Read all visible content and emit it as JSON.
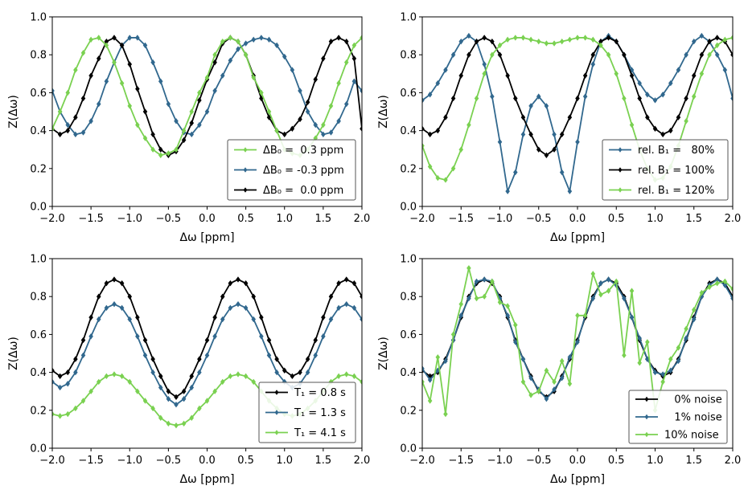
{
  "colors": {
    "black": "#000000",
    "teal": "#31688e",
    "green": "#7ad151"
  },
  "chart_data": [
    {
      "type": "line",
      "xlabel": "Δω [ppm]",
      "ylabel": "Z(Δω)",
      "xlim": [
        -2.0,
        2.0
      ],
      "ylim": [
        0.0,
        1.0
      ],
      "xticks": [
        "−2.0",
        "−1.5",
        "−1.0",
        "−0.5",
        "0.0",
        "0.5",
        "1.0",
        "1.5",
        "2.0"
      ],
      "yticks": [
        "0.0",
        "0.2",
        "0.4",
        "0.6",
        "0.8",
        "1.0"
      ],
      "legend_position": "bottom-right",
      "legend_series_order": [
        2,
        0,
        1
      ],
      "x": [
        -2.0,
        -1.9,
        -1.8,
        -1.7,
        -1.6,
        -1.5,
        -1.4,
        -1.3,
        -1.2,
        -1.1,
        -1.0,
        -0.9,
        -0.8,
        -0.7,
        -0.6,
        -0.5,
        -0.4,
        -0.3,
        -0.2,
        -0.1,
        0.0,
        0.1,
        0.2,
        0.3,
        0.4,
        0.5,
        0.6,
        0.7,
        0.8,
        0.9,
        1.0,
        1.1,
        1.2,
        1.3,
        1.4,
        1.5,
        1.6,
        1.7,
        1.8,
        1.9,
        2.0
      ],
      "series": [
        {
          "name": "ΔB₀ = -0.3 ppm",
          "color": "teal",
          "values": [
            0.61,
            0.5,
            0.43,
            0.38,
            0.39,
            0.45,
            0.54,
            0.66,
            0.76,
            0.85,
            0.89,
            0.89,
            0.85,
            0.76,
            0.66,
            0.54,
            0.45,
            0.39,
            0.38,
            0.43,
            0.5,
            0.61,
            0.69,
            0.77,
            0.83,
            0.86,
            0.88,
            0.89,
            0.88,
            0.85,
            0.79,
            0.72,
            0.61,
            0.5,
            0.43,
            0.38,
            0.39,
            0.45,
            0.54,
            0.66,
            0.61
          ]
        },
        {
          "name": "ΔB₀ =  0.0 ppm",
          "color": "black",
          "values": [
            0.41,
            0.38,
            0.4,
            0.47,
            0.57,
            0.69,
            0.78,
            0.87,
            0.89,
            0.85,
            0.75,
            0.62,
            0.5,
            0.38,
            0.3,
            0.27,
            0.29,
            0.35,
            0.44,
            0.56,
            0.67,
            0.76,
            0.86,
            0.89,
            0.87,
            0.8,
            0.69,
            0.57,
            0.47,
            0.4,
            0.38,
            0.41,
            0.46,
            0.55,
            0.67,
            0.78,
            0.87,
            0.89,
            0.87,
            0.78,
            0.41
          ]
        },
        {
          "name": "ΔB₀ =  0.3 ppm",
          "color": "green",
          "values": [
            0.41,
            0.5,
            0.6,
            0.72,
            0.81,
            0.88,
            0.89,
            0.85,
            0.76,
            0.65,
            0.53,
            0.43,
            0.36,
            0.3,
            0.27,
            0.28,
            0.3,
            0.4,
            0.5,
            0.6,
            0.68,
            0.8,
            0.87,
            0.89,
            0.87,
            0.8,
            0.68,
            0.6,
            0.5,
            0.4,
            0.3,
            0.28,
            0.27,
            0.3,
            0.36,
            0.43,
            0.53,
            0.65,
            0.76,
            0.85,
            0.89
          ]
        }
      ]
    },
    {
      "type": "line",
      "xlabel": "Δω [ppm]",
      "ylabel": "Z(Δω)",
      "xlim": [
        -2.0,
        2.0
      ],
      "ylim": [
        0.0,
        1.0
      ],
      "xticks": [
        "−2.0",
        "−1.5",
        "−1.0",
        "−0.5",
        "0.0",
        "0.5",
        "1.0",
        "1.5",
        "2.0"
      ],
      "yticks": [
        "0.0",
        "0.2",
        "0.4",
        "0.6",
        "0.8",
        "1.0"
      ],
      "legend_position": "bottom-right",
      "legend_series_order": [
        0,
        1,
        2
      ],
      "x": [
        -2.0,
        -1.9,
        -1.8,
        -1.7,
        -1.6,
        -1.5,
        -1.4,
        -1.3,
        -1.2,
        -1.1,
        -1.0,
        -0.9,
        -0.8,
        -0.7,
        -0.6,
        -0.5,
        -0.4,
        -0.3,
        -0.2,
        -0.1,
        0.0,
        0.1,
        0.2,
        0.3,
        0.4,
        0.5,
        0.6,
        0.7,
        0.8,
        0.9,
        1.0,
        1.1,
        1.2,
        1.3,
        1.4,
        1.5,
        1.6,
        1.7,
        1.8,
        1.9,
        2.0
      ],
      "series": [
        {
          "name": "rel. B₁ =   80%",
          "color": "teal",
          "values": [
            0.56,
            0.59,
            0.65,
            0.72,
            0.8,
            0.87,
            0.9,
            0.87,
            0.75,
            0.58,
            0.34,
            0.08,
            0.18,
            0.38,
            0.53,
            0.58,
            0.53,
            0.38,
            0.18,
            0.08,
            0.34,
            0.58,
            0.75,
            0.87,
            0.9,
            0.87,
            0.8,
            0.72,
            0.65,
            0.59,
            0.56,
            0.59,
            0.65,
            0.72,
            0.8,
            0.87,
            0.9,
            0.87,
            0.8,
            0.72,
            0.57
          ]
        },
        {
          "name": "rel. B₁ = 100%",
          "color": "black",
          "values": [
            0.41,
            0.38,
            0.4,
            0.47,
            0.57,
            0.69,
            0.8,
            0.87,
            0.89,
            0.87,
            0.8,
            0.69,
            0.57,
            0.47,
            0.38,
            0.3,
            0.27,
            0.3,
            0.38,
            0.47,
            0.57,
            0.69,
            0.8,
            0.87,
            0.89,
            0.87,
            0.8,
            0.69,
            0.57,
            0.47,
            0.41,
            0.38,
            0.4,
            0.47,
            0.57,
            0.69,
            0.8,
            0.87,
            0.89,
            0.87,
            0.8
          ]
        },
        {
          "name": "rel. B₁ = 120%",
          "color": "green",
          "values": [
            0.32,
            0.21,
            0.15,
            0.14,
            0.2,
            0.3,
            0.43,
            0.57,
            0.7,
            0.8,
            0.85,
            0.88,
            0.89,
            0.89,
            0.88,
            0.87,
            0.86,
            0.86,
            0.87,
            0.88,
            0.89,
            0.89,
            0.88,
            0.85,
            0.8,
            0.7,
            0.57,
            0.43,
            0.3,
            0.2,
            0.14,
            0.15,
            0.21,
            0.32,
            0.45,
            0.58,
            0.7,
            0.8,
            0.85,
            0.88,
            0.89
          ]
        }
      ]
    },
    {
      "type": "line",
      "xlabel": "Δω [ppm]",
      "ylabel": "Z(Δω)",
      "xlim": [
        -2.0,
        2.0
      ],
      "ylim": [
        0.0,
        1.0
      ],
      "xticks": [
        "−2.0",
        "−1.5",
        "−1.0",
        "−0.5",
        "0.0",
        "0.5",
        "1.0",
        "1.5",
        "2.0"
      ],
      "yticks": [
        "0.0",
        "0.2",
        "0.4",
        "0.6",
        "0.8",
        "1.0"
      ],
      "legend_position": "bottom-right",
      "legend_series_order": [
        0,
        1,
        2
      ],
      "x": [
        -2.0,
        -1.9,
        -1.8,
        -1.7,
        -1.6,
        -1.5,
        -1.4,
        -1.3,
        -1.2,
        -1.1,
        -1.0,
        -0.9,
        -0.8,
        -0.7,
        -0.6,
        -0.5,
        -0.4,
        -0.3,
        -0.2,
        -0.1,
        0.0,
        0.1,
        0.2,
        0.3,
        0.4,
        0.5,
        0.6,
        0.7,
        0.8,
        0.9,
        1.0,
        1.1,
        1.2,
        1.3,
        1.4,
        1.5,
        1.6,
        1.7,
        1.8,
        1.9,
        2.0
      ],
      "series": [
        {
          "name": "T₁ = 0.8 s",
          "color": "black",
          "values": [
            0.41,
            0.38,
            0.4,
            0.47,
            0.57,
            0.69,
            0.8,
            0.87,
            0.89,
            0.87,
            0.8,
            0.69,
            0.57,
            0.47,
            0.38,
            0.3,
            0.27,
            0.3,
            0.38,
            0.47,
            0.57,
            0.69,
            0.8,
            0.87,
            0.89,
            0.87,
            0.8,
            0.69,
            0.57,
            0.47,
            0.41,
            0.38,
            0.4,
            0.47,
            0.57,
            0.69,
            0.8,
            0.87,
            0.89,
            0.87,
            0.8
          ]
        },
        {
          "name": "T₁ = 1.3 s",
          "color": "teal",
          "values": [
            0.35,
            0.32,
            0.34,
            0.4,
            0.49,
            0.59,
            0.68,
            0.74,
            0.76,
            0.74,
            0.68,
            0.59,
            0.49,
            0.4,
            0.32,
            0.26,
            0.23,
            0.26,
            0.32,
            0.4,
            0.49,
            0.59,
            0.68,
            0.74,
            0.76,
            0.74,
            0.68,
            0.59,
            0.49,
            0.4,
            0.35,
            0.32,
            0.34,
            0.4,
            0.49,
            0.59,
            0.68,
            0.74,
            0.76,
            0.74,
            0.68
          ]
        },
        {
          "name": "T₁ = 4.1 s",
          "color": "green",
          "values": [
            0.18,
            0.17,
            0.18,
            0.21,
            0.25,
            0.3,
            0.35,
            0.38,
            0.39,
            0.38,
            0.35,
            0.3,
            0.25,
            0.21,
            0.16,
            0.13,
            0.12,
            0.13,
            0.16,
            0.21,
            0.25,
            0.3,
            0.35,
            0.38,
            0.39,
            0.38,
            0.35,
            0.3,
            0.25,
            0.21,
            0.18,
            0.17,
            0.18,
            0.21,
            0.25,
            0.3,
            0.35,
            0.38,
            0.39,
            0.38,
            0.35
          ]
        }
      ]
    },
    {
      "type": "line",
      "xlabel": "Δω [ppm]",
      "ylabel": "Z(Δω)",
      "xlim": [
        -2.0,
        2.0
      ],
      "ylim": [
        0.0,
        1.0
      ],
      "xticks": [
        "−2.0",
        "−1.5",
        "−1.0",
        "−0.5",
        "0.0",
        "0.5",
        "1.0",
        "1.5",
        "2.0"
      ],
      "yticks": [
        "0.0",
        "0.2",
        "0.4",
        "0.6",
        "0.8",
        "1.0"
      ],
      "legend_position": "bottom-right",
      "legend_series_order": [
        0,
        1,
        2
      ],
      "x": [
        -2.0,
        -1.9,
        -1.8,
        -1.7,
        -1.6,
        -1.5,
        -1.4,
        -1.3,
        -1.2,
        -1.1,
        -1.0,
        -0.9,
        -0.8,
        -0.7,
        -0.6,
        -0.5,
        -0.4,
        -0.3,
        -0.2,
        -0.1,
        0.0,
        0.1,
        0.2,
        0.3,
        0.4,
        0.5,
        0.6,
        0.7,
        0.8,
        0.9,
        1.0,
        1.1,
        1.2,
        1.3,
        1.4,
        1.5,
        1.6,
        1.7,
        1.8,
        1.9,
        2.0
      ],
      "series": [
        {
          "name": "   0% noise",
          "color": "black",
          "values": [
            0.41,
            0.38,
            0.4,
            0.47,
            0.57,
            0.69,
            0.8,
            0.87,
            0.89,
            0.87,
            0.8,
            0.69,
            0.57,
            0.47,
            0.38,
            0.3,
            0.27,
            0.3,
            0.38,
            0.47,
            0.57,
            0.69,
            0.8,
            0.87,
            0.89,
            0.87,
            0.8,
            0.69,
            0.57,
            0.47,
            0.41,
            0.38,
            0.4,
            0.47,
            0.57,
            0.69,
            0.8,
            0.87,
            0.89,
            0.87,
            0.8
          ]
        },
        {
          "name": "   1% noise",
          "color": "teal",
          "values": [
            0.42,
            0.36,
            0.41,
            0.46,
            0.57,
            0.7,
            0.79,
            0.88,
            0.89,
            0.88,
            0.79,
            0.7,
            0.56,
            0.47,
            0.37,
            0.31,
            0.26,
            0.31,
            0.37,
            0.48,
            0.56,
            0.7,
            0.79,
            0.87,
            0.89,
            0.86,
            0.79,
            0.69,
            0.58,
            0.47,
            0.4,
            0.39,
            0.41,
            0.46,
            0.58,
            0.68,
            0.8,
            0.86,
            0.89,
            0.86,
            0.79
          ]
        },
        {
          "name": "10% noise",
          "color": "green",
          "values": [
            0.35,
            0.25,
            0.48,
            0.18,
            0.6,
            0.76,
            0.95,
            0.79,
            0.8,
            0.88,
            0.77,
            0.75,
            0.65,
            0.35,
            0.28,
            0.3,
            0.41,
            0.35,
            0.46,
            0.34,
            0.7,
            0.7,
            0.92,
            0.81,
            0.83,
            0.88,
            0.49,
            0.83,
            0.45,
            0.56,
            0.2,
            0.35,
            0.47,
            0.53,
            0.63,
            0.73,
            0.82,
            0.85,
            0.87,
            0.88,
            0.84
          ]
        }
      ]
    }
  ]
}
